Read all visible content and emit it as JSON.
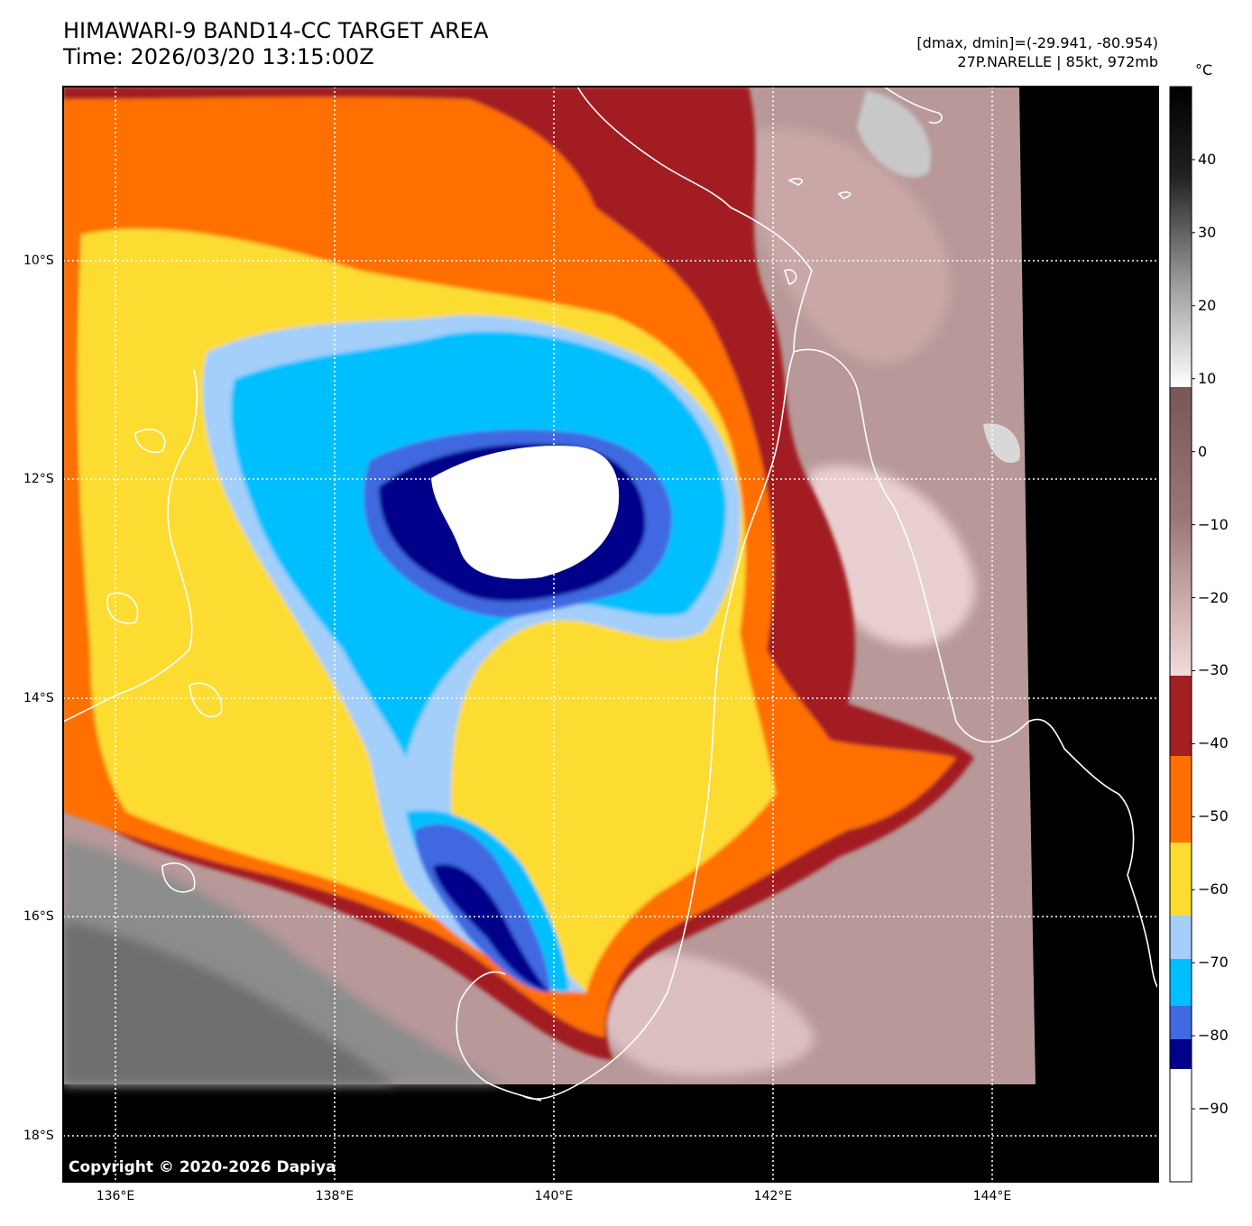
{
  "title": {
    "line1": "HIMAWARI-9 BAND14-CC TARGET AREA",
    "line2": "Time: 2026/03/20 13:15:00Z"
  },
  "meta": {
    "range": "[dmax, dmin]=(-29.941, -80.954)",
    "storm": "27P.NARELLE | 85kt, 972mb"
  },
  "map": {
    "lat_labels": [
      {
        "text": "10°S",
        "lat": -10
      },
      {
        "text": "12°S",
        "lat": -12
      },
      {
        "text": "14°S",
        "lat": -14
      },
      {
        "text": "16°S",
        "lat": -16
      },
      {
        "text": "18°S",
        "lat": -18
      }
    ],
    "lon_labels": [
      {
        "text": "136°E",
        "lon": 136
      },
      {
        "text": "138°E",
        "lon": 138
      },
      {
        "text": "140°E",
        "lon": 140
      },
      {
        "text": "142°E",
        "lon": 142
      },
      {
        "text": "144°E",
        "lon": 144
      }
    ],
    "copyright": "Copyright © 2020-2026 Dapiya"
  },
  "colorbar": {
    "unit": "°C",
    "min": -100,
    "max": 50,
    "ticks": [
      {
        "label": "40",
        "value": 40
      },
      {
        "label": "30",
        "value": 30
      },
      {
        "label": "20",
        "value": 20
      },
      {
        "label": "10",
        "value": 10
      },
      {
        "label": "0",
        "value": 0
      },
      {
        "label": "−10",
        "value": -10
      },
      {
        "label": "−20",
        "value": -20
      },
      {
        "label": "−30",
        "value": -30
      },
      {
        "label": "−40",
        "value": -40
      },
      {
        "label": "−50",
        "value": -50
      },
      {
        "label": "−60",
        "value": -60
      },
      {
        "label": "−70",
        "value": -70
      },
      {
        "label": "−80",
        "value": -80
      },
      {
        "label": "−90",
        "value": -90
      }
    ],
    "colors": {
      "below_minus84": "#ffffff",
      "minus84_to_minus80": "#00008b",
      "minus80_to_minus76": "#4169e1",
      "minus76_to_minus68": "#00bfff",
      "minus68_to_minus63": "#a3cffa",
      "minus63_to_minus52": "#fddc31",
      "minus52_to_minus41": "#ff7000",
      "minus41_to_minus30": "#a31f22"
    }
  }
}
